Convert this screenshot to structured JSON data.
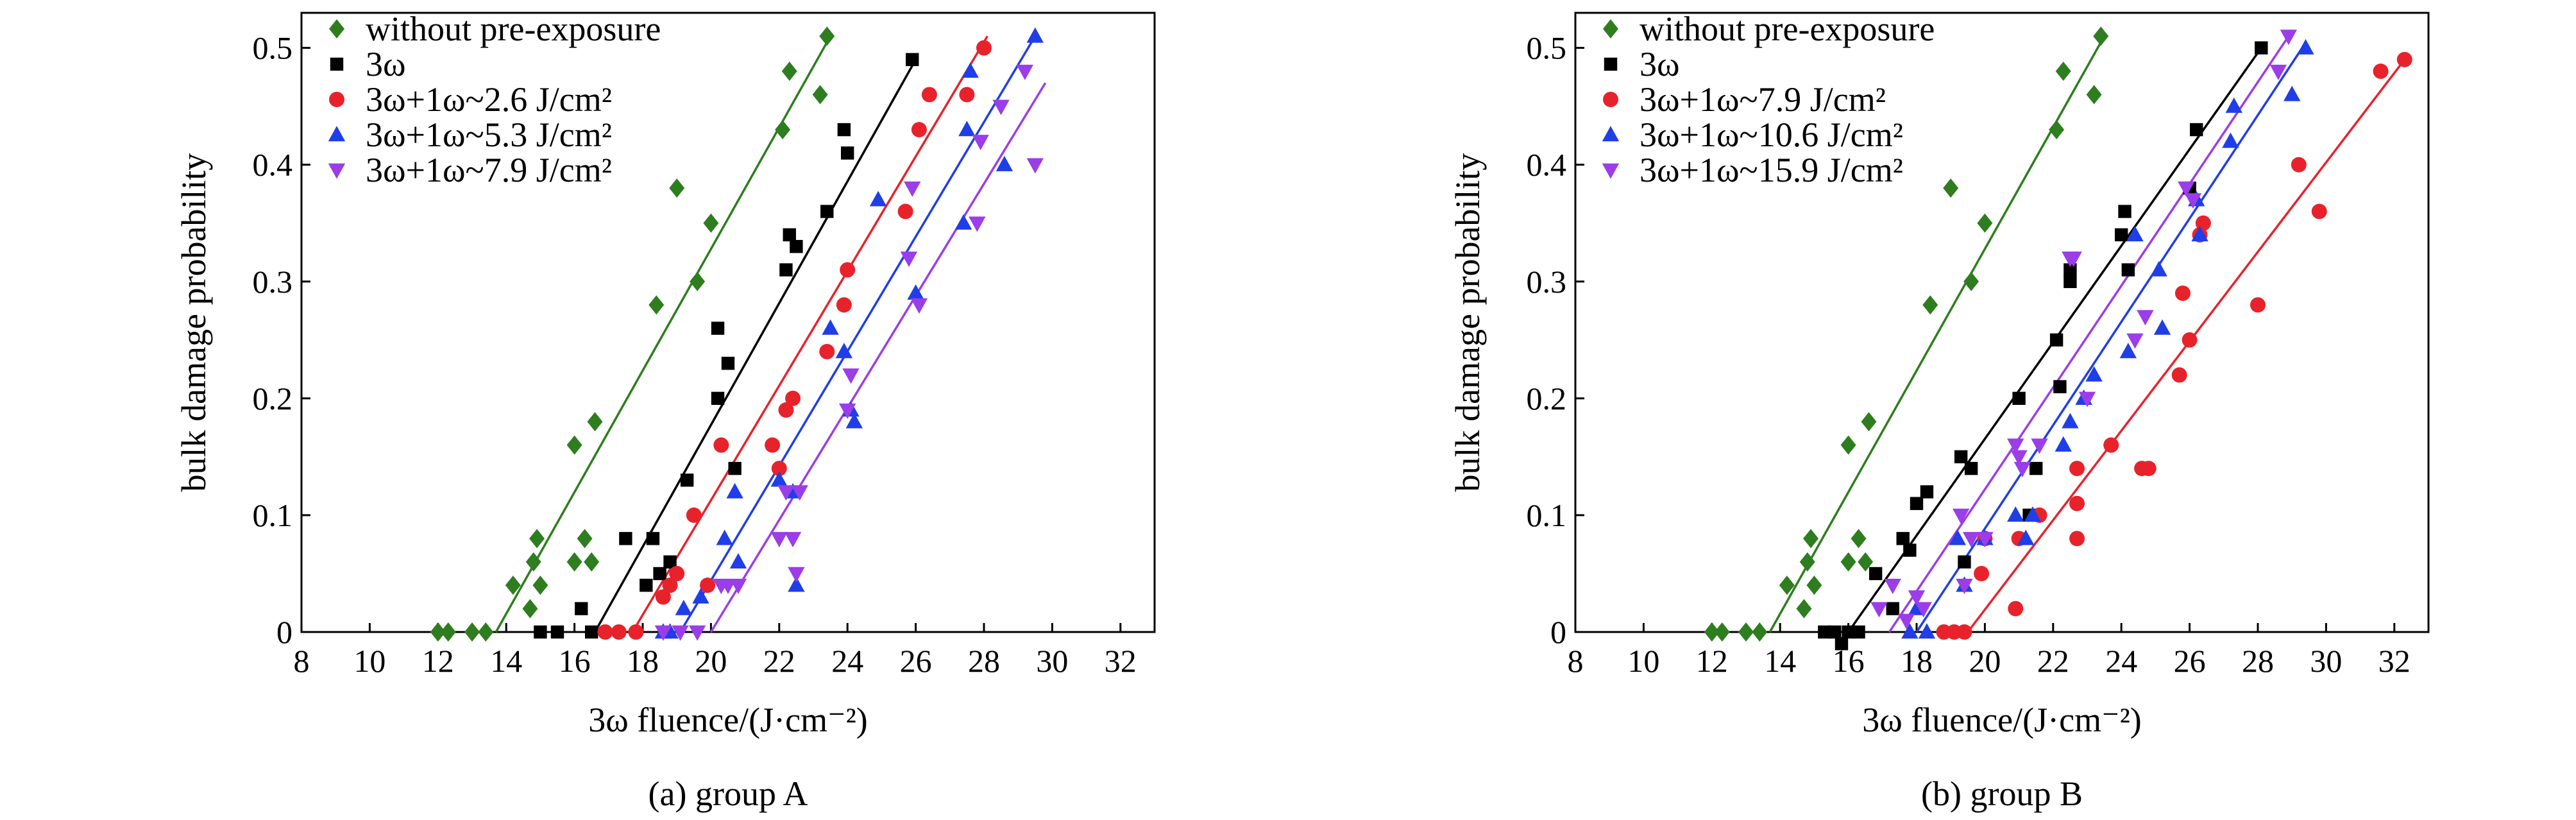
{
  "chart_data": [
    {
      "type": "scatter",
      "caption": "(a) group A",
      "xlabel": "3ω fluence/(J·cm⁻²)",
      "ylabel": "bulk damage probability",
      "xlim": [
        8,
        33
      ],
      "ylim": [
        0,
        0.53
      ],
      "xticks": [
        8,
        10,
        12,
        14,
        16,
        18,
        20,
        22,
        24,
        26,
        28,
        30,
        32
      ],
      "yticks": [
        0,
        0.1,
        0.2,
        0.3,
        0.4,
        0.5
      ],
      "ytick_labels": [
        "0",
        "0.1",
        "0.2",
        "0.3",
        "0.4",
        "0.5"
      ],
      "legend_position": "top-left",
      "series": [
        {
          "name": "without pre-exposure",
          "marker": "diamond",
          "color": "#2e7d1f",
          "points": [
            [
              12.0,
              0
            ],
            [
              12.3,
              0
            ],
            [
              13.0,
              0
            ],
            [
              13.4,
              0
            ],
            [
              14.2,
              0.04
            ],
            [
              14.7,
              0.02
            ],
            [
              14.8,
              0.06
            ],
            [
              14.9,
              0.08
            ],
            [
              15.0,
              0.04
            ],
            [
              16.0,
              0.16
            ],
            [
              16.0,
              0.06
            ],
            [
              16.3,
              0.08
            ],
            [
              16.5,
              0.06
            ],
            [
              16.6,
              0.18
            ],
            [
              18.4,
              0.28
            ],
            [
              19.0,
              0.38
            ],
            [
              19.6,
              0.3
            ],
            [
              20.0,
              0.35
            ],
            [
              22.1,
              0.43
            ],
            [
              22.3,
              0.48
            ],
            [
              23.2,
              0.46
            ],
            [
              23.4,
              0.51
            ]
          ],
          "fit": [
            [
              13.7,
              0
            ],
            [
              23.5,
              0.51
            ]
          ]
        },
        {
          "name": "3ω",
          "marker": "square",
          "color": "#000000",
          "points": [
            [
              15.0,
              0
            ],
            [
              15.5,
              0
            ],
            [
              16.2,
              0.02
            ],
            [
              16.5,
              0
            ],
            [
              17.5,
              0.08
            ],
            [
              18.1,
              0.04
            ],
            [
              18.3,
              0.08
            ],
            [
              18.5,
              0.05
            ],
            [
              18.8,
              0.06
            ],
            [
              19.3,
              0.13
            ],
            [
              20.2,
              0.2
            ],
            [
              20.2,
              0.26
            ],
            [
              20.5,
              0.23
            ],
            [
              20.7,
              0.14
            ],
            [
              22.2,
              0.31
            ],
            [
              22.3,
              0.34
            ],
            [
              22.5,
              0.33
            ],
            [
              23.4,
              0.36
            ],
            [
              23.9,
              0.43
            ],
            [
              24.0,
              0.41
            ],
            [
              25.9,
              0.49
            ]
          ],
          "fit": [
            [
              16.6,
              0
            ],
            [
              26.0,
              0.49
            ]
          ]
        },
        {
          "name": "3ω+1ω~2.6 J/cm²",
          "marker": "circle",
          "color": "#e8222b",
          "points": [
            [
              16.9,
              0
            ],
            [
              17.3,
              0
            ],
            [
              17.8,
              0
            ],
            [
              18.6,
              0.03
            ],
            [
              18.8,
              0.04
            ],
            [
              19.0,
              0.05
            ],
            [
              19.5,
              0.1
            ],
            [
              19.9,
              0.04
            ],
            [
              20.3,
              0.16
            ],
            [
              21.8,
              0.16
            ],
            [
              22.0,
              0.14
            ],
            [
              22.2,
              0.19
            ],
            [
              22.4,
              0.2
            ],
            [
              23.4,
              0.24
            ],
            [
              23.9,
              0.28
            ],
            [
              24.0,
              0.31
            ],
            [
              25.7,
              0.36
            ],
            [
              26.1,
              0.43
            ],
            [
              26.4,
              0.46
            ],
            [
              27.5,
              0.46
            ],
            [
              28.0,
              0.5
            ]
          ],
          "fit": [
            [
              17.7,
              0
            ],
            [
              28.1,
              0.51
            ]
          ]
        },
        {
          "name": "3ω+1ω~5.3 J/cm²",
          "marker": "triangle-up",
          "color": "#1f3ee8",
          "points": [
            [
              18.6,
              0
            ],
            [
              18.8,
              0
            ],
            [
              19.2,
              0.02
            ],
            [
              19.7,
              0.03
            ],
            [
              20.4,
              0.08
            ],
            [
              20.7,
              0.12
            ],
            [
              20.8,
              0.06
            ],
            [
              22.0,
              0.13
            ],
            [
              22.4,
              0.12
            ],
            [
              22.5,
              0.04
            ],
            [
              23.5,
              0.26
            ],
            [
              23.9,
              0.24
            ],
            [
              24.1,
              0.19
            ],
            [
              24.2,
              0.18
            ],
            [
              24.9,
              0.37
            ],
            [
              26.0,
              0.29
            ],
            [
              27.4,
              0.35
            ],
            [
              27.5,
              0.43
            ],
            [
              27.6,
              0.48
            ],
            [
              28.6,
              0.4
            ],
            [
              29.5,
              0.51
            ]
          ],
          "fit": [
            [
              19.1,
              0
            ],
            [
              29.5,
              0.51
            ]
          ]
        },
        {
          "name": "3ω+1ω~7.9 J/cm²",
          "marker": "triangle-down",
          "color": "#9b3de8",
          "points": [
            [
              18.6,
              0
            ],
            [
              19.1,
              0
            ],
            [
              19.6,
              0
            ],
            [
              20.3,
              0.04
            ],
            [
              20.5,
              0.04
            ],
            [
              20.8,
              0.04
            ],
            [
              22.0,
              0.08
            ],
            [
              22.2,
              0.12
            ],
            [
              22.4,
              0.08
            ],
            [
              22.5,
              0.05
            ],
            [
              22.6,
              0.12
            ],
            [
              24.0,
              0.19
            ],
            [
              24.1,
              0.22
            ],
            [
              25.8,
              0.32
            ],
            [
              25.9,
              0.38
            ],
            [
              26.1,
              0.28
            ],
            [
              27.8,
              0.35
            ],
            [
              27.9,
              0.42
            ],
            [
              28.5,
              0.45
            ],
            [
              29.2,
              0.48
            ],
            [
              29.5,
              0.4
            ]
          ],
          "fit": [
            [
              20.0,
              0
            ],
            [
              29.8,
              0.47
            ]
          ]
        }
      ]
    },
    {
      "type": "scatter",
      "caption": "(b) group B",
      "xlabel": "3ω fluence/(J·cm⁻²)",
      "ylabel": "bulk damage probability",
      "xlim": [
        8,
        33
      ],
      "ylim": [
        0,
        0.53
      ],
      "xticks": [
        8,
        10,
        12,
        14,
        16,
        18,
        20,
        22,
        24,
        26,
        28,
        30,
        32
      ],
      "yticks": [
        0,
        0.1,
        0.2,
        0.3,
        0.4,
        0.5
      ],
      "ytick_labels": [
        "0",
        "0.1",
        "0.2",
        "0.3",
        "0.4",
        "0.5"
      ],
      "legend_position": "top-left",
      "series": [
        {
          "name": "without pre-exposure",
          "marker": "diamond",
          "color": "#2e7d1f",
          "points": [
            [
              12.0,
              0
            ],
            [
              12.3,
              0
            ],
            [
              13.0,
              0
            ],
            [
              13.4,
              0
            ],
            [
              14.2,
              0.04
            ],
            [
              14.7,
              0.02
            ],
            [
              14.8,
              0.06
            ],
            [
              14.9,
              0.08
            ],
            [
              15.0,
              0.04
            ],
            [
              16.0,
              0.16
            ],
            [
              16.0,
              0.06
            ],
            [
              16.3,
              0.08
            ],
            [
              16.5,
              0.06
            ],
            [
              16.6,
              0.18
            ],
            [
              18.4,
              0.28
            ],
            [
              19.0,
              0.38
            ],
            [
              19.6,
              0.3
            ],
            [
              20.0,
              0.35
            ],
            [
              22.1,
              0.43
            ],
            [
              22.3,
              0.48
            ],
            [
              23.2,
              0.46
            ],
            [
              23.4,
              0.51
            ]
          ],
          "fit": [
            [
              13.7,
              0
            ],
            [
              23.5,
              0.51
            ]
          ]
        },
        {
          "name": "3ω",
          "marker": "square",
          "color": "#000000",
          "points": [
            [
              15.3,
              0
            ],
            [
              15.6,
              0
            ],
            [
              15.8,
              -0.01
            ],
            [
              16.0,
              0
            ],
            [
              16.3,
              0
            ],
            [
              16.8,
              0.05
            ],
            [
              17.3,
              0.02
            ],
            [
              17.6,
              0.08
            ],
            [
              17.8,
              0.07
            ],
            [
              18.0,
              0.11
            ],
            [
              18.3,
              0.12
            ],
            [
              19.3,
              0.15
            ],
            [
              19.4,
              0.06
            ],
            [
              19.6,
              0.14
            ],
            [
              21.0,
              0.2
            ],
            [
              21.3,
              0.1
            ],
            [
              21.5,
              0.14
            ],
            [
              22.1,
              0.25
            ],
            [
              22.2,
              0.21
            ],
            [
              22.5,
              0.31
            ],
            [
              22.5,
              0.3
            ],
            [
              24.0,
              0.34
            ],
            [
              24.1,
              0.36
            ],
            [
              24.2,
              0.31
            ],
            [
              26.0,
              0.38
            ],
            [
              26.2,
              0.43
            ],
            [
              28.1,
              0.5
            ]
          ],
          "fit": [
            [
              16.0,
              0
            ],
            [
              28.1,
              0.5
            ]
          ]
        },
        {
          "name": "3ω+1ω~7.9 J/cm²",
          "marker": "circle",
          "color": "#e8222b",
          "points": [
            [
              18.8,
              0
            ],
            [
              19.1,
              0
            ],
            [
              19.4,
              0
            ],
            [
              19.9,
              0.05
            ],
            [
              20.0,
              0.08
            ],
            [
              20.9,
              0.02
            ],
            [
              21.0,
              0.08
            ],
            [
              21.6,
              0.1
            ],
            [
              22.7,
              0.11
            ],
            [
              22.7,
              0.08
            ],
            [
              22.7,
              0.14
            ],
            [
              23.7,
              0.16
            ],
            [
              24.6,
              0.14
            ],
            [
              24.8,
              0.14
            ],
            [
              25.7,
              0.22
            ],
            [
              25.8,
              0.29
            ],
            [
              26.0,
              0.25
            ],
            [
              26.3,
              0.34
            ],
            [
              26.4,
              0.35
            ],
            [
              28.0,
              0.28
            ],
            [
              29.2,
              0.4
            ],
            [
              29.8,
              0.36
            ],
            [
              31.6,
              0.48
            ],
            [
              32.3,
              0.49
            ]
          ],
          "fit": [
            [
              19.5,
              0
            ],
            [
              32.3,
              0.49
            ]
          ]
        },
        {
          "name": "3ω+1ω~10.6 J/cm²",
          "marker": "triangle-up",
          "color": "#1f3ee8",
          "points": [
            [
              17.8,
              0
            ],
            [
              18.0,
              0.02
            ],
            [
              18.3,
              0
            ],
            [
              19.2,
              0.08
            ],
            [
              19.4,
              0.04
            ],
            [
              20.0,
              0.08
            ],
            [
              20.9,
              0.1
            ],
            [
              21.2,
              0.08
            ],
            [
              21.4,
              0.1
            ],
            [
              22.3,
              0.16
            ],
            [
              22.5,
              0.18
            ],
            [
              22.9,
              0.2
            ],
            [
              23.2,
              0.22
            ],
            [
              24.2,
              0.24
            ],
            [
              24.4,
              0.34
            ],
            [
              25.1,
              0.31
            ],
            [
              25.2,
              0.26
            ],
            [
              26.2,
              0.37
            ],
            [
              26.3,
              0.34
            ],
            [
              27.3,
              0.45
            ],
            [
              27.2,
              0.42
            ],
            [
              29.0,
              0.46
            ],
            [
              29.4,
              0.5
            ]
          ],
          "fit": [
            [
              18.0,
              0
            ],
            [
              29.3,
              0.5
            ]
          ]
        },
        {
          "name": "3ω+1ω~15.9 J/cm²",
          "marker": "triangle-down",
          "color": "#9b3de8",
          "points": [
            [
              16.9,
              0.02
            ],
            [
              17.3,
              0.04
            ],
            [
              17.7,
              0.01
            ],
            [
              18.0,
              0.03
            ],
            [
              18.2,
              0.02
            ],
            [
              19.3,
              0.1
            ],
            [
              19.4,
              0.04
            ],
            [
              19.6,
              0.08
            ],
            [
              20.0,
              0.08
            ],
            [
              20.9,
              0.16
            ],
            [
              21.0,
              0.15
            ],
            [
              21.1,
              0.14
            ],
            [
              21.6,
              0.16
            ],
            [
              22.5,
              0.32
            ],
            [
              22.6,
              0.32
            ],
            [
              23.0,
              0.2
            ],
            [
              24.4,
              0.25
            ],
            [
              24.7,
              0.27
            ],
            [
              25.9,
              0.38
            ],
            [
              26.1,
              0.37
            ],
            [
              28.6,
              0.48
            ],
            [
              28.9,
              0.51
            ]
          ],
          "fit": [
            [
              17.2,
              0
            ],
            [
              28.9,
              0.51
            ]
          ]
        }
      ]
    }
  ]
}
